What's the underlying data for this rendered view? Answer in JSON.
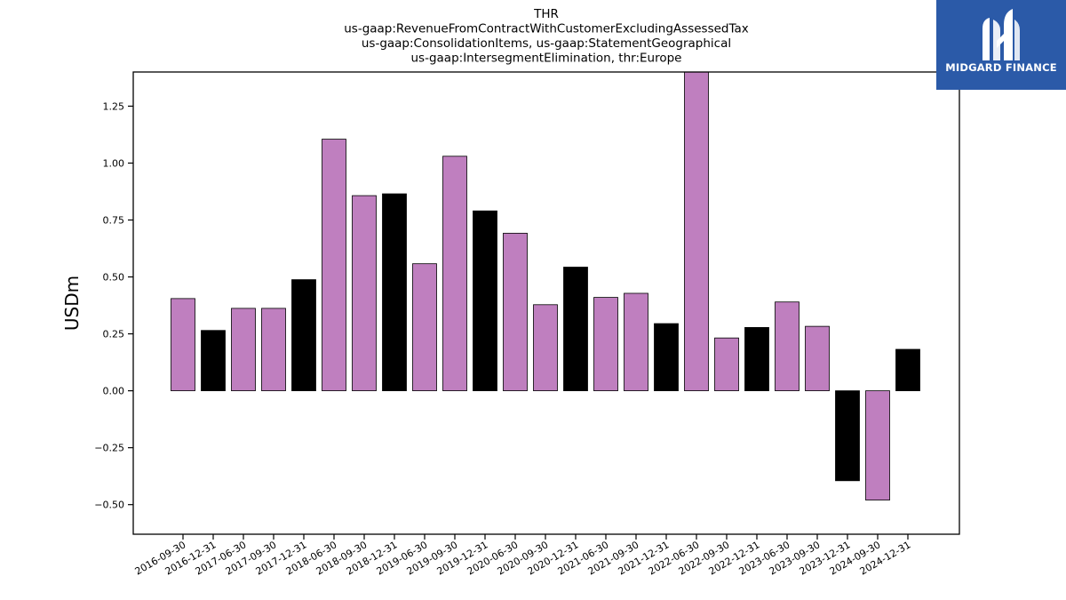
{
  "logo": {
    "text": "MIDGARD FINANCE",
    "icon": "midgard-logo-icon",
    "background": "#2b5aa8"
  },
  "chart_data": {
    "type": "bar",
    "title_lines": [
      "THR",
      "us-gaap:RevenueFromContractWithCustomerExcludingAssessedTax",
      "us-gaap:ConsolidationItems, us-gaap:StatementGeographical",
      "us-gaap:IntersegmentElimination, thr:Europe"
    ],
    "ylabel": "USDm",
    "xlabel": "",
    "ylim": [
      -0.63,
      1.4
    ],
    "yticks": [
      -0.5,
      -0.25,
      0.0,
      0.25,
      0.5,
      0.75,
      1.0,
      1.25
    ],
    "ytick_labels": [
      "−0.50",
      "−0.25",
      "0.00",
      "0.25",
      "0.50",
      "0.75",
      "1.00",
      "1.25"
    ],
    "grid": false,
    "colors": {
      "quarter": "#bf7fbf",
      "year_end": "#000000"
    },
    "categories": [
      "2016-09-30",
      "2016-12-31",
      "2017-06-30",
      "2017-09-30",
      "2017-12-31",
      "2018-06-30",
      "2018-09-30",
      "2018-12-31",
      "2019-06-30",
      "2019-09-30",
      "2019-12-31",
      "2020-06-30",
      "2020-09-30",
      "2020-12-31",
      "2021-06-30",
      "2021-09-30",
      "2021-12-31",
      "2022-06-30",
      "2022-09-30",
      "2022-12-31",
      "2023-06-30",
      "2023-09-30",
      "2023-12-31",
      "2024-09-30",
      "2024-12-31"
    ],
    "values": [
      0.405,
      0.265,
      0.362,
      0.362,
      0.488,
      1.105,
      0.857,
      0.865,
      0.558,
      1.03,
      0.79,
      0.692,
      0.378,
      0.543,
      0.41,
      0.428,
      0.295,
      1.42,
      0.232,
      0.278,
      0.39,
      0.283,
      -0.395,
      -0.48,
      0.182
    ],
    "bar_colors": [
      "quarter",
      "year_end",
      "quarter",
      "quarter",
      "year_end",
      "quarter",
      "quarter",
      "year_end",
      "quarter",
      "quarter",
      "year_end",
      "quarter",
      "quarter",
      "year_end",
      "quarter",
      "quarter",
      "year_end",
      "quarter",
      "quarter",
      "year_end",
      "quarter",
      "quarter",
      "year_end",
      "quarter",
      "year_end"
    ]
  }
}
